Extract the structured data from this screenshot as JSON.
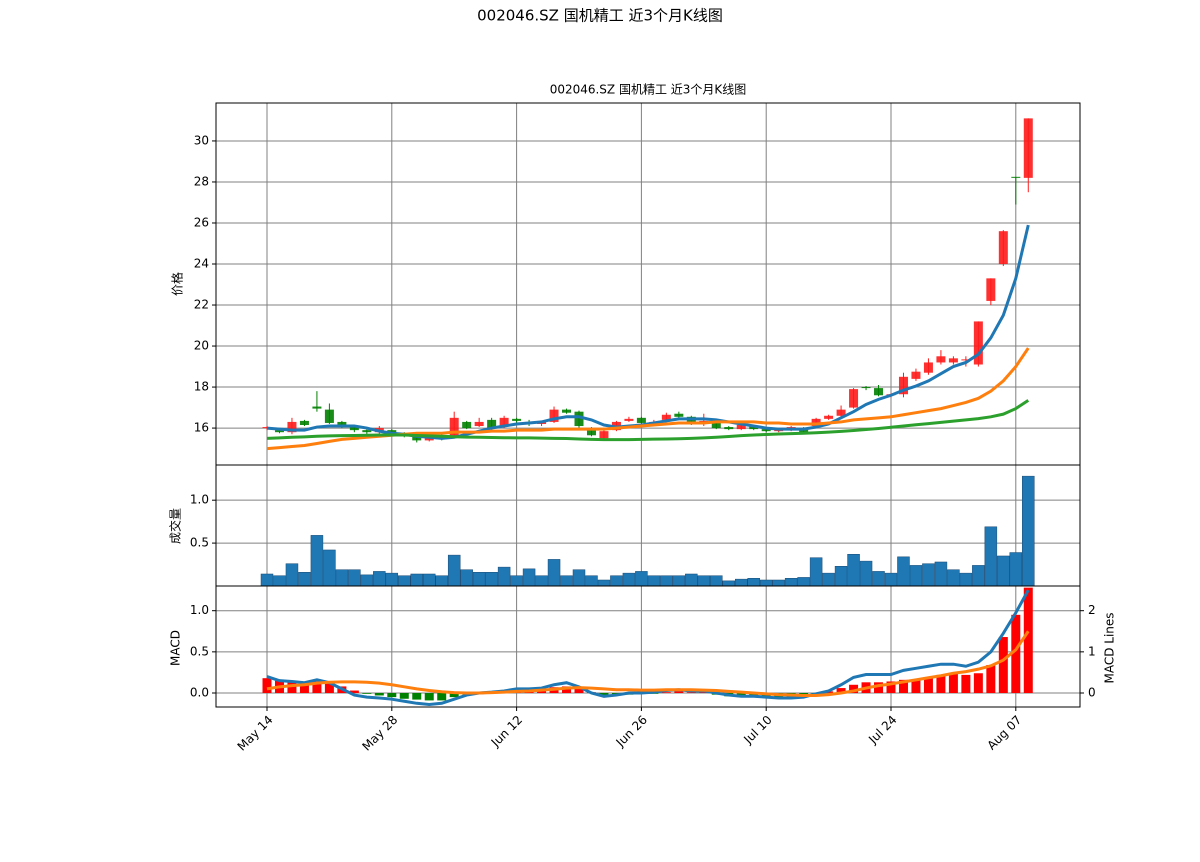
{
  "title": "002046.SZ 国机精工 近3个月K线图",
  "chart_data": [
    {
      "type": "candlestick",
      "title": "002046.SZ 国机精工 近3个月K线图",
      "ylabel": "价格",
      "open": [
        16.0,
        15.9,
        15.8,
        16.35,
        17.05,
        16.9,
        16.3,
        16.1,
        15.9,
        15.8,
        15.9,
        15.7,
        15.6,
        15.4,
        15.6,
        15.55,
        16.3,
        16.1,
        16.4,
        16.1,
        16.45,
        16.3,
        16.2,
        16.3,
        16.9,
        16.8,
        16.0,
        15.5,
        15.9,
        16.35,
        16.5,
        16.25,
        16.4,
        16.7,
        16.55,
        16.2,
        16.3,
        16.05,
        15.95,
        16.1,
        15.95,
        15.85,
        15.9,
        16.0,
        16.1,
        16.45,
        16.6,
        17.0,
        18.0,
        17.95,
        17.6,
        17.65,
        18.4,
        18.7,
        19.2,
        19.2,
        19.3,
        19.1,
        22.2,
        24.0,
        28.25,
        28.2
      ],
      "high": [
        16.1,
        16.0,
        16.5,
        16.4,
        17.8,
        17.2,
        16.35,
        16.15,
        16.0,
        16.1,
        15.95,
        15.8,
        15.65,
        15.7,
        15.7,
        16.8,
        16.35,
        16.5,
        16.5,
        16.6,
        16.5,
        16.4,
        16.35,
        17.05,
        16.95,
        16.85,
        16.05,
        15.9,
        16.35,
        16.55,
        16.55,
        16.4,
        16.75,
        16.8,
        16.6,
        16.7,
        16.35,
        16.1,
        16.2,
        16.15,
        16.0,
        16.0,
        16.1,
        16.05,
        16.5,
        16.65,
        17.1,
        17.95,
        18.05,
        18.1,
        17.7,
        18.7,
        18.9,
        19.4,
        19.8,
        19.5,
        19.5,
        21.2,
        23.3,
        25.65,
        28.25,
        31.1
      ],
      "low": [
        15.9,
        15.75,
        15.7,
        16.1,
        16.8,
        16.2,
        16.0,
        15.8,
        15.7,
        15.7,
        15.7,
        15.55,
        15.3,
        15.35,
        15.4,
        15.5,
        15.95,
        16.05,
        15.9,
        16.0,
        16.2,
        16.1,
        16.1,
        16.25,
        16.7,
        16.0,
        15.6,
        15.45,
        15.85,
        16.3,
        16.2,
        16.15,
        16.3,
        16.45,
        16.15,
        16.1,
        15.95,
        15.9,
        15.9,
        15.9,
        15.8,
        15.8,
        15.85,
        15.7,
        16.0,
        16.4,
        16.5,
        16.95,
        17.85,
        17.55,
        17.5,
        17.5,
        18.3,
        18.6,
        19.1,
        19.1,
        19.0,
        19.0,
        22.0,
        23.9,
        26.9,
        27.5
      ],
      "close": [
        16.05,
        15.8,
        16.3,
        16.15,
        16.95,
        16.25,
        16.1,
        15.9,
        15.8,
        16.0,
        15.75,
        15.6,
        15.4,
        15.55,
        15.5,
        16.5,
        16.0,
        16.3,
        16.0,
        16.5,
        16.35,
        16.2,
        16.3,
        16.9,
        16.75,
        16.1,
        15.65,
        15.85,
        16.3,
        16.45,
        16.25,
        16.3,
        16.65,
        16.55,
        16.2,
        16.35,
        16.0,
        15.95,
        16.15,
        15.95,
        15.85,
        15.95,
        16.05,
        15.8,
        16.45,
        16.6,
        16.9,
        17.9,
        17.95,
        17.6,
        17.65,
        18.5,
        18.75,
        19.2,
        19.5,
        19.4,
        19.35,
        21.2,
        23.3,
        25.6,
        28.2,
        31.1
      ],
      "up_color": "#ff1a1a",
      "down_color": "#008000",
      "series": [
        {
          "color": "#1f77b4",
          "values": [
            16.0,
            15.95,
            15.9,
            15.9,
            16.05,
            16.1,
            16.1,
            16.1,
            16.0,
            15.85,
            15.75,
            15.7,
            15.6,
            15.55,
            15.5,
            15.55,
            15.7,
            15.85,
            16.0,
            16.1,
            16.2,
            16.25,
            16.3,
            16.45,
            16.55,
            16.55,
            16.4,
            16.15,
            16.05,
            16.1,
            16.15,
            16.25,
            16.35,
            16.45,
            16.45,
            16.45,
            16.4,
            16.3,
            16.2,
            16.1,
            16.0,
            15.95,
            15.95,
            15.95,
            16.05,
            16.2,
            16.5,
            16.8,
            17.15,
            17.4,
            17.6,
            17.85,
            18.05,
            18.3,
            18.65,
            19.0,
            19.2,
            19.6,
            20.4,
            21.5,
            23.3,
            25.9
          ]
        },
        {
          "color": "#ff7f0e",
          "values": [
            15.0,
            15.05,
            15.1,
            15.15,
            15.25,
            15.35,
            15.45,
            15.5,
            15.55,
            15.6,
            15.65,
            15.7,
            15.75,
            15.75,
            15.75,
            15.8,
            15.8,
            15.8,
            15.85,
            15.85,
            15.9,
            15.9,
            15.9,
            15.95,
            15.95,
            15.95,
            15.95,
            15.95,
            16.0,
            16.05,
            16.1,
            16.15,
            16.2,
            16.25,
            16.25,
            16.25,
            16.3,
            16.3,
            16.3,
            16.3,
            16.25,
            16.25,
            16.2,
            16.2,
            16.2,
            16.25,
            16.3,
            16.4,
            16.45,
            16.5,
            16.55,
            16.65,
            16.75,
            16.85,
            16.95,
            17.1,
            17.25,
            17.45,
            17.8,
            18.3,
            19.0,
            19.9
          ]
        },
        {
          "color": "#2ca02c",
          "values": [
            15.5,
            15.52,
            15.55,
            15.57,
            15.6,
            15.62,
            15.63,
            15.64,
            15.65,
            15.66,
            15.67,
            15.66,
            15.64,
            15.62,
            15.6,
            15.58,
            15.56,
            15.55,
            15.54,
            15.53,
            15.52,
            15.52,
            15.51,
            15.5,
            15.49,
            15.47,
            15.45,
            15.44,
            15.44,
            15.44,
            15.45,
            15.46,
            15.47,
            15.48,
            15.5,
            15.52,
            15.55,
            15.59,
            15.63,
            15.66,
            15.69,
            15.71,
            15.73,
            15.75,
            15.77,
            15.8,
            15.84,
            15.88,
            15.93,
            15.98,
            16.04,
            16.1,
            16.16,
            16.22,
            16.28,
            16.34,
            16.4,
            16.46,
            16.55,
            16.68,
            16.95,
            17.35
          ]
        }
      ],
      "ylim": [
        14.2,
        31.85
      ],
      "yticks": [
        16,
        18,
        20,
        22,
        24,
        26,
        28,
        30
      ],
      "grid": true
    },
    {
      "type": "bar",
      "ylabel": "成交量",
      "values": [
        0.14,
        0.12,
        0.26,
        0.16,
        0.59,
        0.42,
        0.19,
        0.19,
        0.13,
        0.17,
        0.15,
        0.12,
        0.14,
        0.14,
        0.12,
        0.36,
        0.19,
        0.16,
        0.16,
        0.22,
        0.12,
        0.2,
        0.12,
        0.31,
        0.12,
        0.19,
        0.12,
        0.07,
        0.12,
        0.15,
        0.17,
        0.12,
        0.12,
        0.12,
        0.14,
        0.12,
        0.12,
        0.06,
        0.08,
        0.09,
        0.07,
        0.07,
        0.09,
        0.1,
        0.33,
        0.15,
        0.23,
        0.37,
        0.29,
        0.17,
        0.15,
        0.34,
        0.24,
        0.26,
        0.28,
        0.19,
        0.15,
        0.24,
        0.69,
        0.35,
        0.39,
        1.28
      ],
      "color": "#1f77b4",
      "ylim": [
        0,
        1.41
      ],
      "yticks": [
        0.5,
        {
          "value": 1,
          "label": "1.0"
        }
      ],
      "grid": true
    },
    {
      "type": "macd",
      "ylabel": "MACD",
      "y2label": "MACD Lines",
      "categories": [
        "May 14",
        null,
        null,
        null,
        null,
        null,
        null,
        null,
        null,
        null,
        "May 28",
        null,
        null,
        null,
        null,
        null,
        null,
        null,
        null,
        null,
        "Jun 12",
        null,
        null,
        null,
        null,
        null,
        null,
        null,
        null,
        null,
        "Jun 26",
        null,
        null,
        null,
        null,
        null,
        null,
        null,
        null,
        null,
        "Jul 10",
        null,
        null,
        null,
        null,
        null,
        null,
        null,
        null,
        null,
        "Jul 24",
        null,
        null,
        null,
        null,
        null,
        null,
        null,
        null,
        null,
        "Aug 07",
        null
      ],
      "values": [
        0.18,
        0.15,
        0.14,
        0.13,
        0.14,
        0.12,
        0.08,
        0.03,
        -0.01,
        -0.03,
        -0.05,
        -0.07,
        -0.08,
        -0.09,
        -0.09,
        -0.05,
        -0.02,
        0.0,
        0.01,
        0.03,
        0.04,
        0.04,
        0.05,
        0.07,
        0.08,
        0.06,
        0.01,
        -0.03,
        -0.03,
        -0.02,
        -0.01,
        -0.01,
        0.01,
        0.02,
        0.01,
        0.01,
        -0.02,
        -0.04,
        -0.05,
        -0.05,
        -0.06,
        -0.06,
        -0.05,
        -0.04,
        -0.01,
        0.02,
        0.06,
        0.1,
        0.13,
        0.13,
        0.14,
        0.16,
        0.17,
        0.19,
        0.22,
        0.24,
        0.22,
        0.24,
        0.34,
        0.68,
        0.95,
        1.28
      ],
      "pos_color": "#ff0000",
      "neg_color": "#008000",
      "series": [
        {
          "color": "#1f77b4",
          "axis": "y2",
          "values": [
            0.4,
            0.3,
            0.28,
            0.25,
            0.32,
            0.25,
            0.1,
            -0.05,
            -0.1,
            -0.12,
            -0.15,
            -0.2,
            -0.25,
            -0.28,
            -0.25,
            -0.15,
            -0.05,
            0.0,
            0.02,
            0.05,
            0.1,
            0.1,
            0.12,
            0.2,
            0.25,
            0.15,
            0.0,
            -0.08,
            -0.05,
            0.0,
            0.0,
            0.02,
            0.06,
            0.08,
            0.05,
            0.05,
            0.0,
            -0.05,
            -0.08,
            -0.08,
            -0.1,
            -0.12,
            -0.12,
            -0.1,
            -0.02,
            0.05,
            0.2,
            0.38,
            0.45,
            0.45,
            0.45,
            0.55,
            0.6,
            0.65,
            0.7,
            0.7,
            0.65,
            0.75,
            1.0,
            1.45,
            1.95,
            2.5
          ]
        },
        {
          "color": "#ff7f0e",
          "axis": "y2",
          "values": [
            0.1,
            0.15,
            0.18,
            0.2,
            0.24,
            0.26,
            0.27,
            0.27,
            0.26,
            0.24,
            0.2,
            0.15,
            0.1,
            0.06,
            0.03,
            0.01,
            0.0,
            0.0,
            0.01,
            0.02,
            0.04,
            0.05,
            0.07,
            0.09,
            0.12,
            0.13,
            0.12,
            0.1,
            0.08,
            0.08,
            0.07,
            0.07,
            0.08,
            0.08,
            0.08,
            0.07,
            0.06,
            0.04,
            0.02,
            0.0,
            -0.02,
            -0.04,
            -0.05,
            -0.06,
            -0.06,
            -0.04,
            0.0,
            0.05,
            0.12,
            0.18,
            0.22,
            0.27,
            0.32,
            0.37,
            0.42,
            0.48,
            0.52,
            0.58,
            0.66,
            0.8,
            1.05,
            1.5
          ]
        }
      ],
      "ylim": [
        -0.17,
        1.3
      ],
      "yticks": [
        {
          "value": 0,
          "label": "0.0"
        },
        0.5,
        {
          "value": 1,
          "label": "1.0"
        }
      ],
      "y2lim": [
        -0.34,
        2.6
      ],
      "y2ticks": [
        0,
        1,
        2
      ],
      "grid": true
    }
  ]
}
